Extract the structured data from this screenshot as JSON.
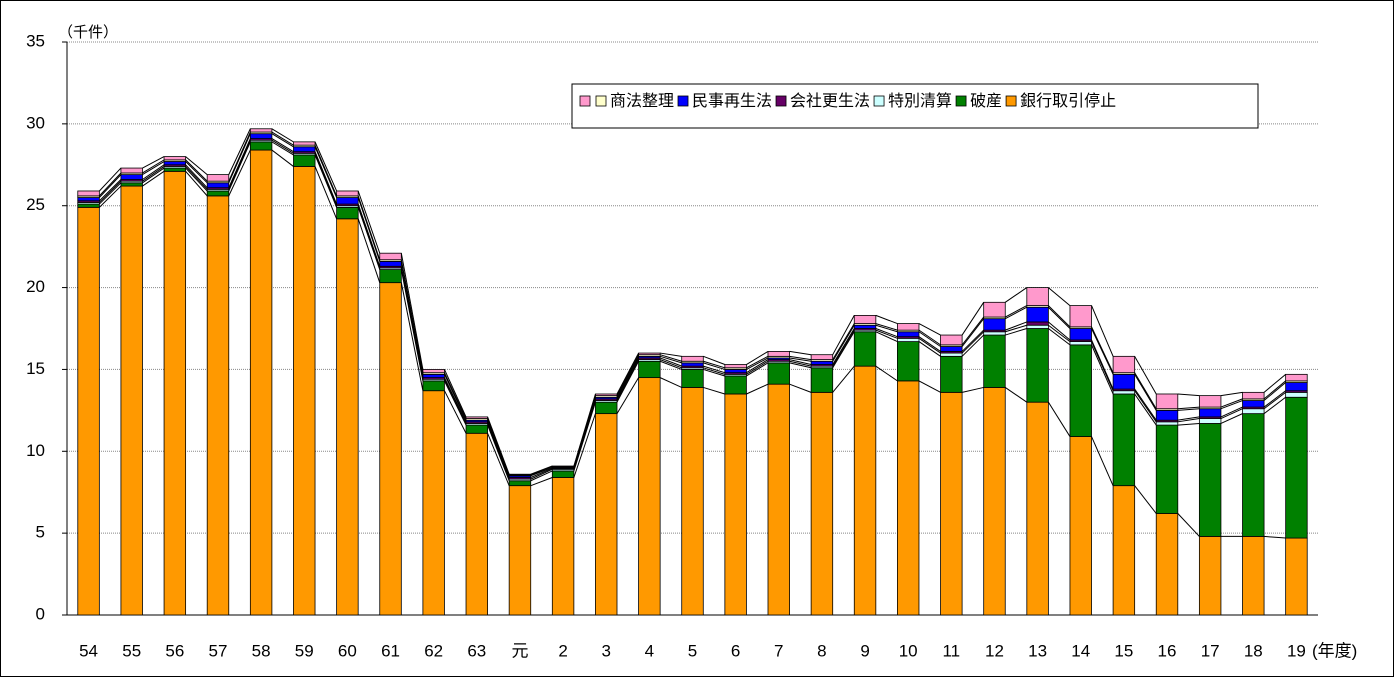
{
  "chart_data": {
    "type": "stacked-bar",
    "y_axis_label": "（千件）",
    "x_axis_label": "(年度)",
    "categories": [
      "54",
      "55",
      "56",
      "57",
      "58",
      "59",
      "60",
      "61",
      "62",
      "63",
      "元",
      "2",
      "3",
      "4",
      "5",
      "6",
      "7",
      "8",
      "9",
      "10",
      "11",
      "12",
      "13",
      "14",
      "15",
      "16",
      "17",
      "18",
      "19"
    ],
    "series": [
      {
        "name": "銀行取引停止",
        "color": "#ff9900",
        "values": [
          24.9,
          26.2,
          27.1,
          25.6,
          28.4,
          27.4,
          24.2,
          20.3,
          13.7,
          11.1,
          7.9,
          8.4,
          12.3,
          14.5,
          13.9,
          13.5,
          14.1,
          13.6,
          15.2,
          14.3,
          13.6,
          13.9,
          13.0,
          10.9,
          7.9,
          6.2,
          4.8,
          4.8,
          4.7
        ]
      },
      {
        "name": "破産",
        "color": "#008000",
        "values": [
          0.2,
          0.2,
          0.2,
          0.3,
          0.5,
          0.7,
          0.7,
          0.8,
          0.6,
          0.5,
          0.3,
          0.4,
          0.7,
          1.0,
          1.1,
          1.1,
          1.3,
          1.5,
          2.1,
          2.4,
          2.2,
          3.2,
          4.5,
          5.6,
          5.6,
          5.4,
          6.9,
          7.5,
          8.6
        ]
      },
      {
        "name": "特別清算",
        "color": "#ccffff",
        "values": [
          0.1,
          0.1,
          0.1,
          0.1,
          0.1,
          0.1,
          0.1,
          0.1,
          0.1,
          0.1,
          0.1,
          0.1,
          0.1,
          0.1,
          0.1,
          0.1,
          0.1,
          0.1,
          0.1,
          0.2,
          0.2,
          0.2,
          0.2,
          0.2,
          0.2,
          0.2,
          0.3,
          0.3,
          0.3
        ]
      },
      {
        "name": "会社更生法",
        "color": "#660066",
        "values": [
          0.1,
          0.1,
          0.1,
          0.1,
          0.1,
          0.1,
          0.1,
          0.1,
          0.1,
          0.1,
          0.1,
          0.05,
          0.1,
          0.1,
          0.1,
          0.1,
          0.1,
          0.1,
          0.1,
          0.1,
          0.1,
          0.1,
          0.2,
          0.1,
          0.1,
          0.1,
          0.1,
          0.1,
          0.1
        ]
      },
      {
        "name": "民事再生法",
        "color": "#0000ff",
        "values": [
          0.2,
          0.3,
          0.2,
          0.3,
          0.3,
          0.3,
          0.4,
          0.3,
          0.2,
          0.1,
          0.1,
          0.05,
          0.1,
          0.1,
          0.2,
          0.2,
          0.1,
          0.2,
          0.2,
          0.3,
          0.3,
          0.7,
          0.9,
          0.7,
          0.9,
          0.6,
          0.5,
          0.4,
          0.5
        ]
      },
      {
        "name": "商法整理",
        "color": "#ffffcc",
        "values": [
          0.1,
          0.1,
          0.1,
          0.1,
          0.1,
          0.1,
          0.1,
          0.1,
          0.1,
          0.1,
          0.05,
          0.05,
          0.1,
          0.1,
          0.1,
          0.1,
          0.1,
          0.1,
          0.1,
          0.1,
          0.1,
          0.1,
          0.1,
          0.1,
          0.1,
          0.1,
          0.1,
          0.1,
          0.1
        ]
      },
      {
        "name": null,
        "color": "#ff99cc",
        "values": [
          0.3,
          0.3,
          0.2,
          0.4,
          0.2,
          0.2,
          0.3,
          0.4,
          0.2,
          0.1,
          0.05,
          0.05,
          0.1,
          0.1,
          0.3,
          0.2,
          0.3,
          0.3,
          0.5,
          0.4,
          0.6,
          0.9,
          1.1,
          1.3,
          1.0,
          0.9,
          0.7,
          0.4,
          0.4
        ]
      }
    ],
    "ylim": [
      0,
      35
    ],
    "yticks": [
      0,
      5,
      10,
      15,
      20,
      25,
      30,
      35
    ],
    "grid": true,
    "legend": "top-right"
  }
}
